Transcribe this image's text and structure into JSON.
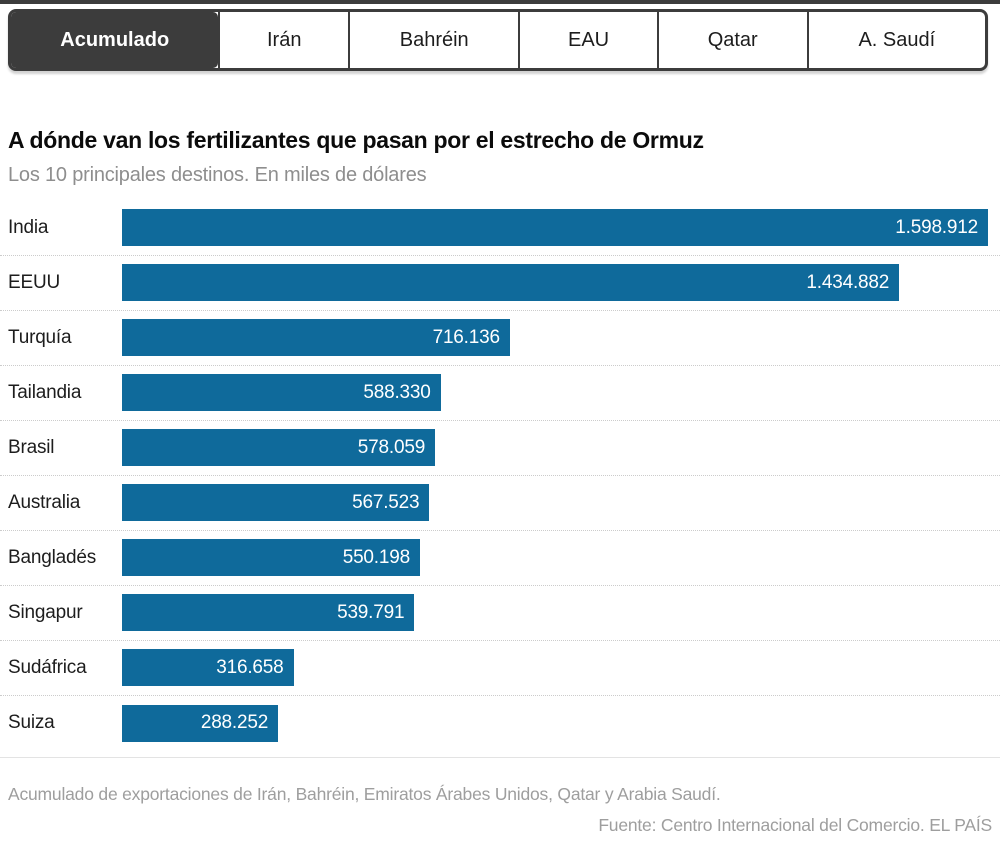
{
  "tabs": {
    "items": [
      {
        "label": "Acumulado",
        "selected": true
      },
      {
        "label": "Irán",
        "selected": false
      },
      {
        "label": "Bahréin",
        "selected": false
      },
      {
        "label": "EAU",
        "selected": false
      },
      {
        "label": "Qatar",
        "selected": false
      },
      {
        "label": "A. Saudí",
        "selected": false
      }
    ]
  },
  "header": {
    "title": "A dónde van los fertilizantes que pasan por el estrecho de Ormuz",
    "subtitle": "Los 10 principales destinos. En miles de dólares"
  },
  "chart_data": {
    "type": "bar",
    "orientation": "horizontal",
    "title": "A dónde van los fertilizantes que pasan por el estrecho de Ormuz",
    "subtitle": "Los 10 principales destinos. En miles de dólares",
    "unit": "miles de dólares",
    "categories": [
      "India",
      "EEUU",
      "Turquía",
      "Tailandia",
      "Brasil",
      "Australia",
      "Bangladés",
      "Singapur",
      "Sudáfrica",
      "Suiza"
    ],
    "values": [
      1598912,
      1434882,
      716136,
      588330,
      578059,
      567523,
      550198,
      539791,
      316658,
      288252
    ],
    "value_labels": [
      "1.598.912",
      "1.434.882",
      "716.136",
      "588.330",
      "578.059",
      "567.523",
      "550.198",
      "539.791",
      "316.658",
      "288.252"
    ],
    "xlim": [
      0,
      1598912
    ],
    "grid": false,
    "legend": false,
    "bar_color": "#0f6a9b",
    "value_label_position": "inside-end"
  },
  "footer": {
    "note": "Acumulado de exportaciones de Irán, Bahréin, Emiratos Árabes Unidos, Qatar y Arabia Saudí.",
    "source": "Fuente: Centro Internacional del Comercio. EL PAÍS"
  },
  "colors": {
    "accent_dark": "#3c3c3c",
    "bar": "#0f6a9b",
    "subtitle_text": "#8e8e8e",
    "footer_text": "#9e9e9e",
    "separator_dotted": "#cccccc"
  }
}
